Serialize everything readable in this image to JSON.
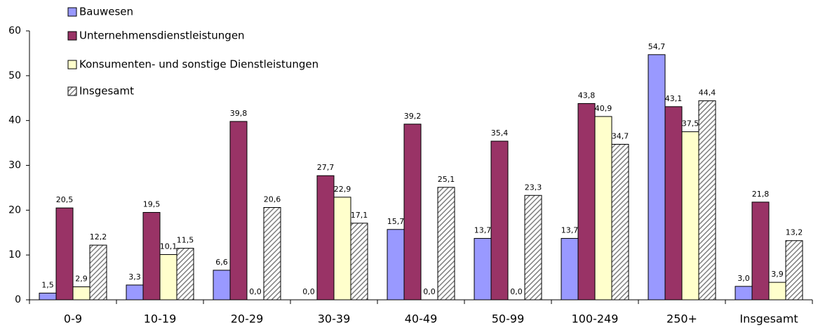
{
  "chart_data": {
    "type": "bar",
    "categories": [
      "0-9",
      "10-19",
      "20-29",
      "30-39",
      "40-49",
      "50-99",
      "100-249",
      "250+",
      "Insgesamt"
    ],
    "series": [
      {
        "name": "Bauwesen",
        "color": "#9999ff",
        "values": [
          1.5,
          3.3,
          6.6,
          0.0,
          15.7,
          13.7,
          13.7,
          54.7,
          3.0
        ],
        "value_labels": [
          "1,5",
          "3,3",
          "6,6",
          "0,0",
          "15,7",
          "13,7",
          "13,7",
          "54,7",
          "3,0"
        ]
      },
      {
        "name": "Unternehmensdienstleistungen",
        "color": "#993366",
        "values": [
          20.5,
          19.5,
          39.8,
          27.7,
          39.2,
          35.4,
          43.8,
          43.1,
          21.8
        ],
        "value_labels": [
          "20,5",
          "19,5",
          "39,8",
          "27,7",
          "39,2",
          "35,4",
          "43,8",
          "43,1",
          "21,8"
        ]
      },
      {
        "name": "Konsumenten- und sonstige Dienstleistungen",
        "color": "#ffffcc",
        "values": [
          2.9,
          10.1,
          0.0,
          22.9,
          0.0,
          0.0,
          40.9,
          37.5,
          3.9
        ],
        "value_labels": [
          "2,9",
          "10,1",
          "0,0",
          "22,9",
          "0,0",
          "0,0",
          "40,9",
          "37,5",
          "3,9"
        ]
      },
      {
        "name": "Insgesamt",
        "color": "#808080",
        "pattern": "hatch",
        "values": [
          12.2,
          11.5,
          20.6,
          17.1,
          25.1,
          23.3,
          34.7,
          44.4,
          13.2
        ],
        "value_labels": [
          "12,2",
          "11,5",
          "20,6",
          "17,1",
          "25,1",
          "23,3",
          "34,7",
          "44,4",
          "13,2"
        ]
      }
    ],
    "ylim": [
      0,
      60
    ],
    "yticks": [
      0,
      10,
      20,
      30,
      40,
      50,
      60
    ],
    "legend": "top-left"
  }
}
